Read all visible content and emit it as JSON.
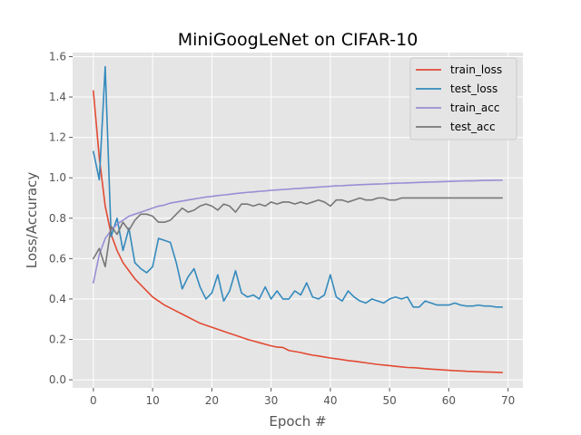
{
  "chart_data": {
    "type": "line",
    "title": "MiniGoogLeNet on CIFAR-10",
    "xlabel": "Epoch #",
    "ylabel": "Loss/Accuracy",
    "xlim": [
      -3.5,
      72.5
    ],
    "ylim": [
      -0.04,
      1.62
    ],
    "xticks": [
      0,
      10,
      20,
      30,
      40,
      50,
      60,
      70
    ],
    "yticks": [
      0.0,
      0.2,
      0.4,
      0.6,
      0.8,
      1.0,
      1.2,
      1.4,
      1.6
    ],
    "grid": true,
    "legend_position": "top-right",
    "style": "ggplot",
    "x": [
      0,
      1,
      2,
      3,
      4,
      5,
      6,
      7,
      8,
      9,
      10,
      11,
      12,
      13,
      14,
      15,
      16,
      17,
      18,
      19,
      20,
      21,
      22,
      23,
      24,
      25,
      26,
      27,
      28,
      29,
      30,
      31,
      32,
      33,
      34,
      35,
      36,
      37,
      38,
      39,
      40,
      41,
      42,
      43,
      44,
      45,
      46,
      47,
      48,
      49,
      50,
      51,
      52,
      53,
      54,
      55,
      56,
      57,
      58,
      59,
      60,
      61,
      62,
      63,
      64,
      65,
      66,
      67,
      68,
      69
    ],
    "series": [
      {
        "name": "train_loss",
        "color": "#E24A33",
        "values": [
          1.43,
          1.1,
          0.86,
          0.72,
          0.64,
          0.58,
          0.54,
          0.5,
          0.47,
          0.44,
          0.41,
          0.39,
          0.37,
          0.355,
          0.34,
          0.325,
          0.31,
          0.295,
          0.28,
          0.27,
          0.26,
          0.25,
          0.24,
          0.23,
          0.22,
          0.21,
          0.2,
          0.192,
          0.184,
          0.176,
          0.168,
          0.162,
          0.16,
          0.145,
          0.14,
          0.135,
          0.128,
          0.122,
          0.118,
          0.113,
          0.108,
          0.104,
          0.1,
          0.095,
          0.092,
          0.088,
          0.084,
          0.08,
          0.076,
          0.073,
          0.07,
          0.067,
          0.064,
          0.061,
          0.06,
          0.058,
          0.055,
          0.053,
          0.051,
          0.049,
          0.047,
          0.045,
          0.044,
          0.042,
          0.041,
          0.04,
          0.039,
          0.038,
          0.037,
          0.036
        ]
      },
      {
        "name": "test_loss",
        "color": "#348ABD",
        "values": [
          1.13,
          0.99,
          1.55,
          0.71,
          0.8,
          0.64,
          0.75,
          0.58,
          0.55,
          0.53,
          0.56,
          0.7,
          0.69,
          0.68,
          0.58,
          0.45,
          0.51,
          0.55,
          0.46,
          0.4,
          0.43,
          0.52,
          0.39,
          0.44,
          0.54,
          0.43,
          0.41,
          0.42,
          0.4,
          0.46,
          0.4,
          0.44,
          0.4,
          0.4,
          0.44,
          0.42,
          0.48,
          0.41,
          0.4,
          0.42,
          0.52,
          0.41,
          0.39,
          0.44,
          0.41,
          0.39,
          0.38,
          0.4,
          0.39,
          0.38,
          0.4,
          0.41,
          0.4,
          0.41,
          0.36,
          0.36,
          0.39,
          0.38,
          0.37,
          0.37,
          0.37,
          0.38,
          0.37,
          0.365,
          0.365,
          0.37,
          0.365,
          0.365,
          0.36,
          0.36
        ]
      },
      {
        "name": "train_acc",
        "color": "#988ED5",
        "values": [
          0.48,
          0.62,
          0.7,
          0.74,
          0.77,
          0.79,
          0.81,
          0.82,
          0.83,
          0.84,
          0.85,
          0.86,
          0.865,
          0.875,
          0.88,
          0.885,
          0.89,
          0.895,
          0.9,
          0.905,
          0.908,
          0.912,
          0.915,
          0.918,
          0.922,
          0.925,
          0.928,
          0.93,
          0.933,
          0.935,
          0.938,
          0.94,
          0.942,
          0.944,
          0.946,
          0.948,
          0.95,
          0.952,
          0.954,
          0.956,
          0.958,
          0.96,
          0.961,
          0.963,
          0.964,
          0.966,
          0.967,
          0.968,
          0.969,
          0.97,
          0.972,
          0.973,
          0.974,
          0.975,
          0.976,
          0.977,
          0.978,
          0.979,
          0.98,
          0.981,
          0.982,
          0.983,
          0.984,
          0.985,
          0.985,
          0.986,
          0.987,
          0.987,
          0.988,
          0.988
        ]
      },
      {
        "name": "test_acc",
        "color": "#777777",
        "values": [
          0.6,
          0.65,
          0.56,
          0.76,
          0.72,
          0.78,
          0.74,
          0.79,
          0.82,
          0.82,
          0.81,
          0.78,
          0.78,
          0.79,
          0.82,
          0.85,
          0.83,
          0.84,
          0.86,
          0.87,
          0.86,
          0.84,
          0.87,
          0.86,
          0.83,
          0.87,
          0.87,
          0.86,
          0.87,
          0.86,
          0.88,
          0.87,
          0.88,
          0.88,
          0.87,
          0.88,
          0.87,
          0.88,
          0.89,
          0.88,
          0.86,
          0.89,
          0.89,
          0.88,
          0.89,
          0.9,
          0.89,
          0.89,
          0.9,
          0.9,
          0.89,
          0.89,
          0.9,
          0.9,
          0.9,
          0.9,
          0.9,
          0.9,
          0.9,
          0.9,
          0.9,
          0.9,
          0.9,
          0.9,
          0.9,
          0.9,
          0.9,
          0.9,
          0.9,
          0.9
        ]
      }
    ]
  }
}
